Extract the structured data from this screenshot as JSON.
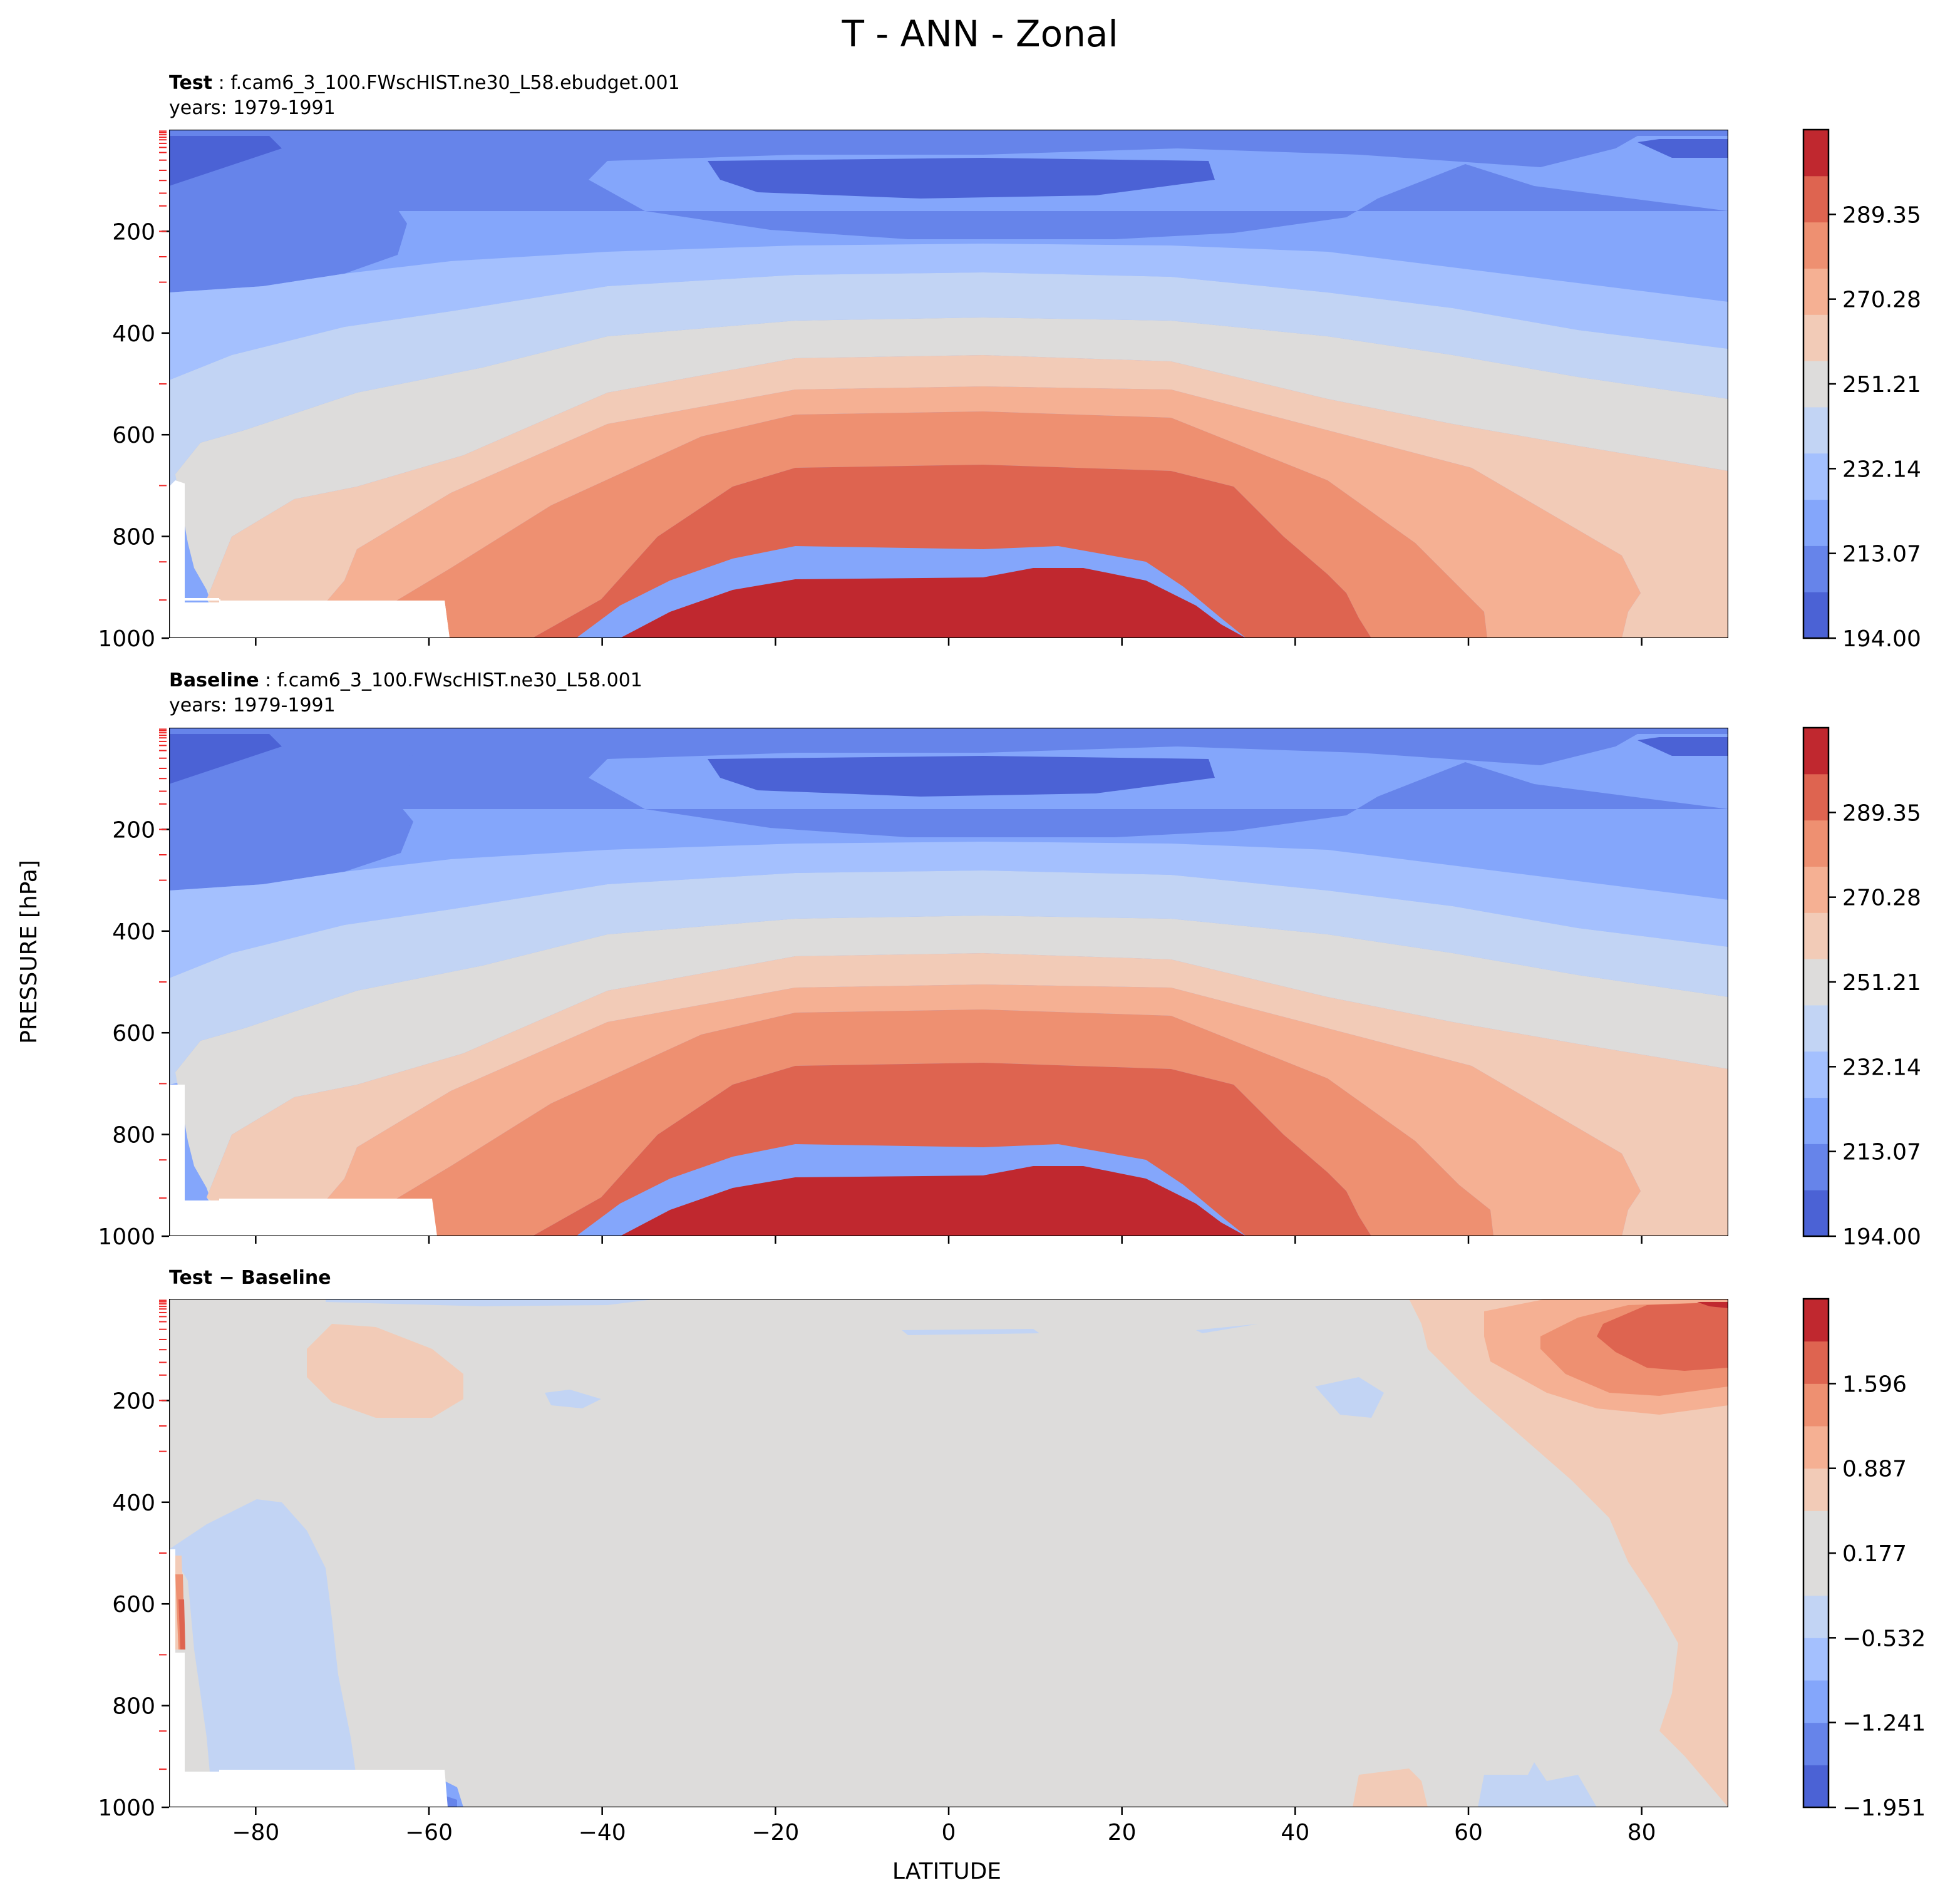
{
  "figure": {
    "title": "T - ANN - Zonal",
    "ylabel": "PRESSURE [hPa]",
    "xlabel": "LATITUDE"
  },
  "panels": [
    {
      "bold": "Test",
      "sep": " : ",
      "rest": "f.cam6_3_100.FWscHIST.ne30_L58.ebudget.001",
      "years": "years: 1979-1991"
    },
    {
      "bold": "Baseline",
      "sep": " : ",
      "rest": "f.cam6_3_100.FWscHIST.ne30_L58.001",
      "years": "years: 1979-1991"
    },
    {
      "bold": "Test − Baseline",
      "sep": "",
      "rest": "",
      "years": ""
    }
  ],
  "colors": {
    "levels": [
      "#4b62d5",
      "#6684ea",
      "#84a6fb",
      "#a4c0fe",
      "#c2d4f4",
      "#dddcdb",
      "#f2cbb7",
      "#f5b093",
      "#ee9071",
      "#de6450",
      "#c0282f"
    ],
    "mask": "#ffffff",
    "axis": "#000000",
    "minor_tick": "#ee2222"
  },
  "chart_data": [
    {
      "type": "contourf",
      "name": "Test",
      "x_range": [
        -90,
        90
      ],
      "x_ticks": [
        -80,
        -60,
        -40,
        -20,
        0,
        20,
        40,
        60,
        80
      ],
      "y_range": [
        0,
        1000
      ],
      "y_inverted": true,
      "y_ticks": [
        200,
        400,
        600,
        800,
        1000
      ],
      "colorbar": {
        "range": [
          194.0,
          308.42
        ],
        "n_levels": 11,
        "ticks": [
          194.0,
          213.07,
          232.14,
          251.21,
          270.28,
          289.35
        ],
        "tick_labels": [
          "194.00",
          "213.07",
          "232.14",
          "251.21",
          "270.28",
          "289.35"
        ]
      },
      "ytick_labels": [
        "200",
        "400",
        "600",
        "800",
        "1000"
      ]
    },
    {
      "type": "contourf",
      "name": "Baseline",
      "x_range": [
        -90,
        90
      ],
      "x_ticks": [
        -80,
        -60,
        -40,
        -20,
        0,
        20,
        40,
        60,
        80
      ],
      "y_range": [
        0,
        1000
      ],
      "y_inverted": true,
      "y_ticks": [
        200,
        400,
        600,
        800,
        1000
      ],
      "colorbar": {
        "range": [
          194.0,
          308.42
        ],
        "n_levels": 11,
        "ticks": [
          194.0,
          213.07,
          232.14,
          251.21,
          270.28,
          289.35
        ],
        "tick_labels": [
          "194.00",
          "213.07",
          "232.14",
          "251.21",
          "270.28",
          "289.35"
        ]
      },
      "ytick_labels": [
        "200",
        "400",
        "600",
        "800",
        "1000"
      ]
    },
    {
      "type": "contourf",
      "name": "Test − Baseline",
      "x_range": [
        -90,
        90
      ],
      "x_ticks": [
        -80,
        -60,
        -40,
        -20,
        0,
        20,
        40,
        60,
        80
      ],
      "x_tick_labels": [
        "−80",
        "−60",
        "−40",
        "−20",
        "0",
        "20",
        "40",
        "60",
        "80"
      ],
      "y_range": [
        0,
        1000
      ],
      "y_inverted": true,
      "y_ticks": [
        200,
        400,
        600,
        800,
        1000
      ],
      "colorbar": {
        "range": [
          -1.951,
          2.306
        ],
        "n_levels": 12,
        "ticks": [
          -1.951,
          -1.241,
          -0.532,
          0.177,
          0.887,
          1.596
        ],
        "tick_labels": [
          "−1.951",
          "−1.241",
          "−0.532",
          "0.177",
          "0.887",
          "1.596"
        ]
      },
      "ytick_labels": [
        "200",
        "400",
        "600",
        "800",
        "1000"
      ]
    }
  ]
}
